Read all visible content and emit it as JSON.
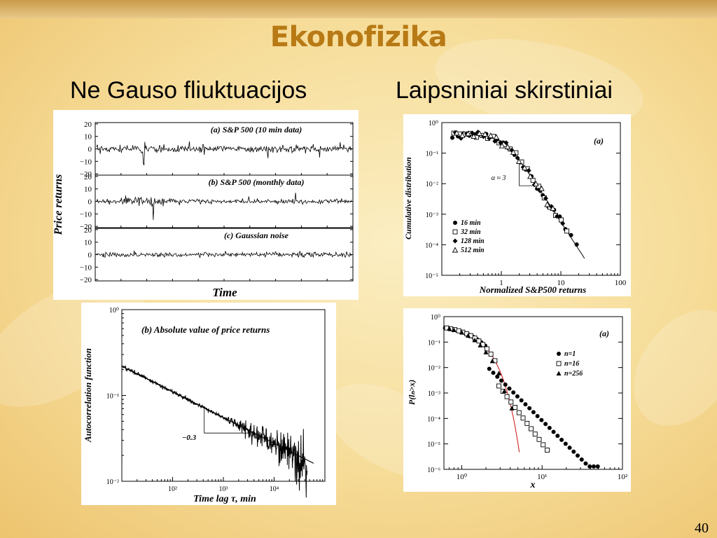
{
  "slide": {
    "title": "Ekonofizika",
    "left_heading": "Ne Gauso fliuktuacijos",
    "right_heading": "Laipsniniai skirstiniai",
    "page_number": "40"
  },
  "chart_data": [
    {
      "type": "line",
      "ylabel": "Price returns",
      "xlabel": "Time",
      "subplots": [
        {
          "label": "(a) S&P 500 (10 min data)",
          "ylim": [
            -20,
            20
          ],
          "yticks": [
            "20",
            "10",
            "0",
            "−10",
            "−20"
          ]
        },
        {
          "label": "(b) S&P 500 (monthly data)",
          "ylim": [
            -20,
            20
          ],
          "yticks": [
            "20",
            "10",
            "0",
            "−10",
            "−20"
          ]
        },
        {
          "label": "(c) Gaussian noise",
          "ylim": [
            -20,
            20
          ],
          "yticks": [
            "20",
            "10",
            "0",
            "−10",
            "−20"
          ]
        }
      ]
    },
    {
      "type": "line",
      "title": "(b) Absolute value of price returns",
      "xlabel": "Time lag τ, min",
      "ylabel": "Autocorrelation function",
      "xscale": "log",
      "yscale": "log",
      "xlim": [
        10,
        100000
      ],
      "ylim": [
        0.01,
        1
      ],
      "xticks": [
        "10²",
        "10³",
        "10⁴"
      ],
      "yticks": [
        "10⁰",
        "10⁻¹",
        "10⁻²"
      ],
      "annotation": "−0.3",
      "slope": -0.3
    },
    {
      "type": "scatter",
      "title": "(a)",
      "xlabel": "Normalized S&P500 returns",
      "ylabel": "Cumulative distribution",
      "xscale": "log",
      "yscale": "log",
      "xlim": [
        0.1,
        100
      ],
      "ylim": [
        1e-05,
        1
      ],
      "xticks": [
        "1",
        "10",
        "100"
      ],
      "yticks": [
        "10⁰",
        "10⁻¹",
        "10⁻²",
        "10⁻³",
        "10⁻⁴",
        "10⁻⁵"
      ],
      "annotation": "α ≈ 3",
      "alpha": 3,
      "series": [
        {
          "name": "16 min",
          "marker": "filled-circle"
        },
        {
          "name": "32 min",
          "marker": "open-square"
        },
        {
          "name": "128 min",
          "marker": "filled-diamond"
        },
        {
          "name": "512 min",
          "marker": "open-triangle"
        }
      ]
    },
    {
      "type": "scatter",
      "title": "(a)",
      "xlabel": "x",
      "ylabel": "P(lₙ>x)",
      "xscale": "log",
      "yscale": "log",
      "xlim": [
        0.6,
        100
      ],
      "ylim": [
        1e-06,
        1
      ],
      "xticks": [
        "10⁰",
        "10¹",
        "10²"
      ],
      "yticks": [
        "10⁰",
        "10⁻¹",
        "10⁻²",
        "10⁻³",
        "10⁻⁴",
        "10⁻⁵",
        "10⁻⁶"
      ],
      "series": [
        {
          "name": "n=1",
          "marker": "filled-circle"
        },
        {
          "name": "n=16",
          "marker": "open-square"
        },
        {
          "name": "n=256",
          "marker": "filled-triangle"
        }
      ]
    }
  ]
}
